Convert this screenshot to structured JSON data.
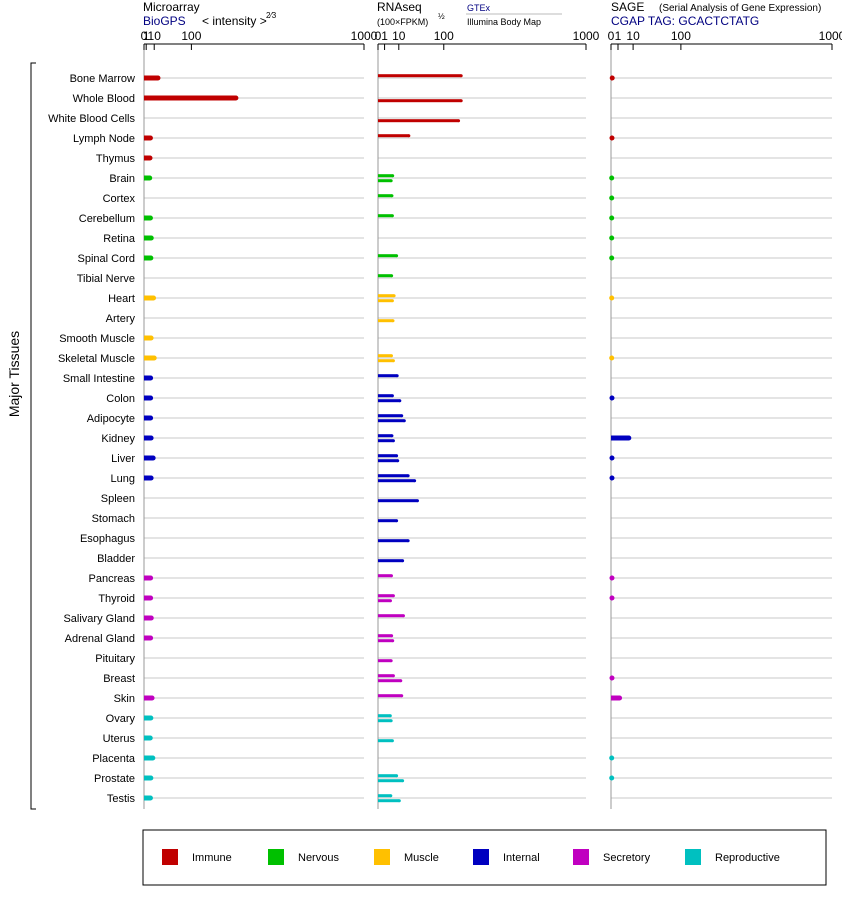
{
  "panels": [
    {
      "title": "Microarray",
      "subtitle": "BioGPS",
      "unit": "< intensity >",
      "unit_exp": "2⁄3"
    },
    {
      "title": "RNAseq",
      "unit": "(100×FPKM)",
      "unit_exp": "½",
      "source_top": "GTEx",
      "source_bottom": "Illumina Body Map"
    },
    {
      "title": "SAGE",
      "title_note": "(Serial Analysis of Gene Expression)",
      "subtitle": "CGAP TAG: GCACTCTATG"
    }
  ],
  "chart_data": {
    "type": "bar",
    "orientation": "horizontal",
    "ylabel": "Major Tissues",
    "x_ticks": [
      "0",
      "1",
      "10",
      "100",
      "1000"
    ],
    "x_scale": "power",
    "xlim": [
      0,
      1000
    ],
    "categories": [
      "Bone Marrow",
      "Whole Blood",
      "White Blood Cells",
      "Lymph Node",
      "Thymus",
      "Brain",
      "Cortex",
      "Cerebellum",
      "Retina",
      "Spinal Cord",
      "Tibial Nerve",
      "Heart",
      "Artery",
      "Smooth Muscle",
      "Skeletal Muscle",
      "Small Intestine",
      "Colon",
      "Adipocyte",
      "Kidney",
      "Liver",
      "Lung",
      "Spleen",
      "Stomach",
      "Esophagus",
      "Bladder",
      "Pancreas",
      "Thyroid",
      "Salivary Gland",
      "Adrenal Gland",
      "Pituitary",
      "Breast",
      "Skin",
      "Ovary",
      "Uterus",
      "Placenta",
      "Prostate",
      "Testis"
    ],
    "groups": [
      "Immune",
      "Immune",
      "Immune",
      "Immune",
      "Immune",
      "Nervous",
      "Nervous",
      "Nervous",
      "Nervous",
      "Nervous",
      "Nervous",
      "Muscle",
      "Muscle",
      "Muscle",
      "Muscle",
      "Internal",
      "Internal",
      "Internal",
      "Internal",
      "Internal",
      "Internal",
      "Internal",
      "Internal",
      "Internal",
      "Internal",
      "Secretory",
      "Secretory",
      "Secretory",
      "Secretory",
      "Secretory",
      "Secretory",
      "Secretory",
      "Reproductive",
      "Reproductive",
      "Reproductive",
      "Reproductive",
      "Reproductive"
    ],
    "legend": [
      {
        "name": "Immune",
        "color": "#c00000"
      },
      {
        "name": "Nervous",
        "color": "#00c000"
      },
      {
        "name": "Muscle",
        "color": "#ffc000"
      },
      {
        "name": "Internal",
        "color": "#0000c0"
      },
      {
        "name": "Secretory",
        "color": "#c000c0"
      },
      {
        "name": "Reproductive",
        "color": "#00c0c0"
      }
    ],
    "legend_position": "bottom",
    "grid": true,
    "microarray": [
      16,
      270,
      null,
      5,
      4.5,
      4.2,
      null,
      5,
      6,
      5.5,
      null,
      9,
      null,
      5.8,
      10,
      5.2,
      5.2,
      5.2,
      5.8,
      8.5,
      5.8,
      null,
      null,
      null,
      null,
      5.2,
      5.2,
      6,
      5.2,
      null,
      null,
      7,
      5.5,
      4.8,
      8,
      5.5,
      5
    ],
    "gtex": [
      160,
      null,
      null,
      22,
      null,
      5,
      4.5,
      4.8,
      null,
      8,
      4.3,
      6,
      null,
      null,
      4.2,
      8.5,
      4.8,
      13,
      4.5,
      8,
      21,
      null,
      null,
      null,
      null,
      4.2,
      5.5,
      15,
      4.3,
      null,
      5.5,
      13,
      3.5,
      null,
      null,
      8,
      3.8
    ],
    "bodymap": [
      null,
      160,
      150,
      null,
      null,
      4,
      null,
      null,
      null,
      null,
      null,
      4.8,
      5.2,
      null,
      5.5,
      null,
      11,
      16,
      5.5,
      9,
      31,
      36,
      8,
      21,
      14,
      null,
      3.6,
      null,
      5,
      4,
      12,
      null,
      4,
      4.8,
      null,
      14,
      10.5
    ],
    "sage": [
      0.03,
      null,
      null,
      0.02,
      null,
      0.01,
      0.01,
      0.01,
      0.01,
      0.01,
      null,
      0.01,
      null,
      null,
      0.01,
      null,
      0.02,
      null,
      6.5,
      0.02,
      0.02,
      null,
      null,
      null,
      null,
      0.02,
      0.02,
      null,
      null,
      null,
      0.02,
      1.5,
      null,
      null,
      0.01,
      0.01,
      null
    ]
  }
}
